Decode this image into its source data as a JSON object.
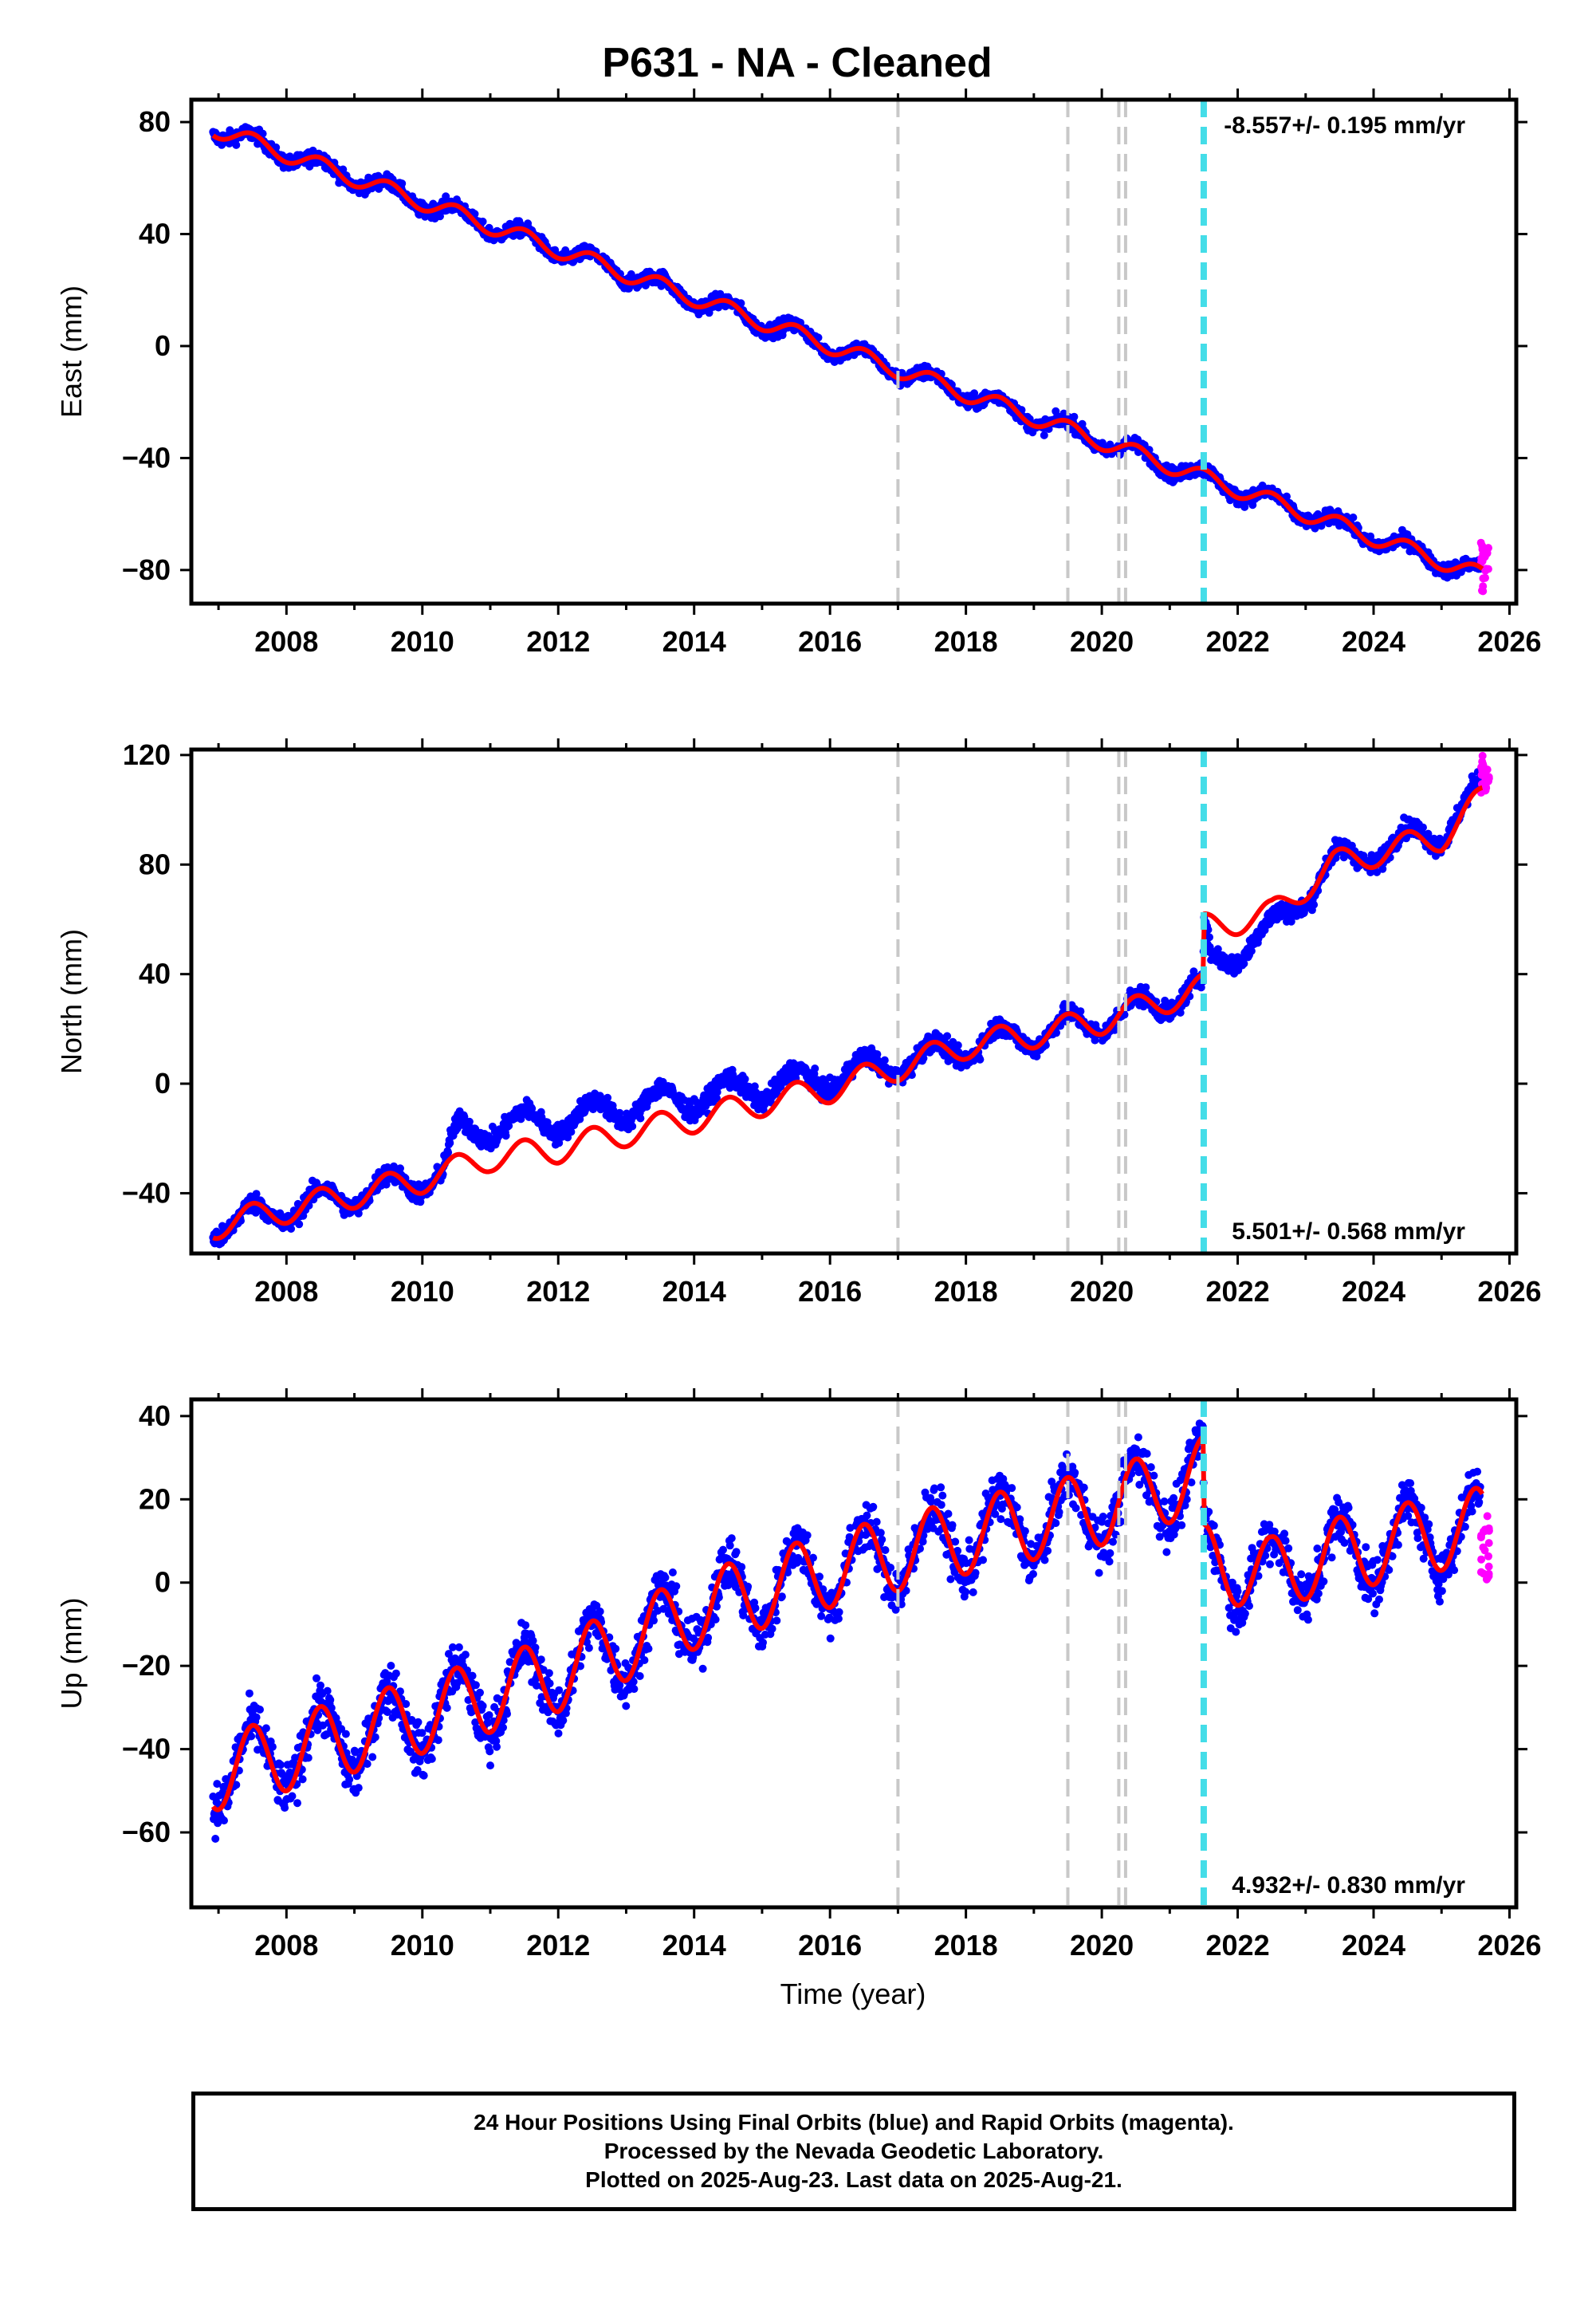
{
  "chart_data": {
    "title": "P631  - NA - Cleaned",
    "type": "scatter",
    "xlabel": "Time (year)",
    "xlim": [
      2006.6,
      2026.1
    ],
    "xticks": [
      2008,
      2010,
      2012,
      2014,
      2016,
      2018,
      2020,
      2022,
      2024,
      2026
    ],
    "xtick_labels": [
      "2008",
      "2010",
      "2012",
      "2014",
      "2016",
      "2018",
      "2020",
      "2022",
      "2024",
      "2026"
    ],
    "event_lines": {
      "gray_dashed": [
        2017.0,
        2019.5,
        2020.25,
        2020.35
      ],
      "cyan_dashed": [
        2021.5
      ]
    },
    "colors": {
      "final_orbits": "#0000ff",
      "rapid_orbits": "#ff00ff",
      "model": "#ff0000",
      "gray_event": "#c8c8c8",
      "cyan_event": "#44dde8"
    },
    "panels": [
      {
        "ylabel": "East (mm)",
        "ylim": [
          -92,
          88
        ],
        "yticks": [
          -80,
          -40,
          0,
          40,
          80
        ],
        "ytick_labels": [
          "−80",
          "−40",
          "0",
          "40",
          "80"
        ],
        "rate_text": "-8.557+/- 0.195 mm/yr",
        "rate_position": "top-right",
        "trend": {
          "start": [
            2006.9,
            78
          ],
          "end": [
            2025.6,
            -82
          ]
        },
        "offsets": [],
        "seasonal_amplitude": 3,
        "scatter": 2.5,
        "rapid_range": [
          -88,
          -70
        ]
      },
      {
        "ylabel": "North (mm)",
        "ylim": [
          -62,
          122
        ],
        "yticks": [
          -40,
          0,
          40,
          80,
          120
        ],
        "ytick_labels": [
          "−40",
          "0",
          "40",
          "80",
          "120"
        ],
        "rate_text": "5.501+/- 0.568 mm/yr",
        "rate_position": "bottom-right",
        "model_points": [
          [
            2006.9,
            -52
          ],
          [
            2010,
            -35
          ],
          [
            2011,
            -27
          ],
          [
            2012,
            -24
          ],
          [
            2013,
            -18
          ],
          [
            2014,
            -13
          ],
          [
            2015,
            -7
          ],
          [
            2016,
            -2
          ],
          [
            2017,
            6
          ],
          [
            2018,
            14
          ],
          [
            2019,
            18
          ],
          [
            2020,
            23
          ],
          [
            2021.49,
            35
          ],
          [
            2021.51,
            57
          ],
          [
            2022.5,
            62
          ],
          [
            2023.4,
            80
          ],
          [
            2024,
            84
          ],
          [
            2025,
            90
          ],
          [
            2025.6,
            104
          ]
        ],
        "data_offset_points": [
          [
            2006.9,
            0
          ],
          [
            2010.3,
            0
          ],
          [
            2010.5,
            12
          ],
          [
            2013.5,
            9
          ],
          [
            2016.5,
            3
          ],
          [
            2017.5,
            0
          ],
          [
            2021.5,
            0
          ],
          [
            2021.6,
            -14
          ],
          [
            2022.5,
            -6
          ],
          [
            2023.3,
            0
          ],
          [
            2025.6,
            3
          ]
        ],
        "seasonal_amplitude": 5,
        "scatter": 3.5,
        "rapid_range": [
          106,
          120
        ]
      },
      {
        "ylabel": "Up (mm)",
        "ylim": [
          -78,
          44
        ],
        "yticks": [
          -60,
          -40,
          -20,
          0,
          20,
          40
        ],
        "ytick_labels": [
          "−60",
          "−40",
          "−20",
          "0",
          "20",
          "40"
        ],
        "rate_text": "4.932+/- 0.830 mm/yr",
        "rate_position": "bottom-right",
        "model_points": [
          [
            2006.9,
            -46
          ],
          [
            2010,
            -32
          ],
          [
            2012,
            -22
          ],
          [
            2014,
            -7
          ],
          [
            2016,
            3
          ],
          [
            2018,
            11
          ],
          [
            2020,
            18
          ],
          [
            2021.49,
            26
          ],
          [
            2021.51,
            5
          ],
          [
            2022.5,
            2
          ],
          [
            2023,
            5
          ],
          [
            2025.6,
            14
          ]
        ],
        "seasonal_amplitude": 9,
        "scatter": 6,
        "rapid_range": [
          0,
          18
        ]
      }
    ]
  },
  "footer": {
    "line1": "24 Hour Positions Using Final Orbits (blue) and Rapid Orbits (magenta).",
    "line2": "Processed by the Nevada Geodetic Laboratory.",
    "line3": "Plotted on 2025-Aug-23. Last data on 2025-Aug-21."
  }
}
